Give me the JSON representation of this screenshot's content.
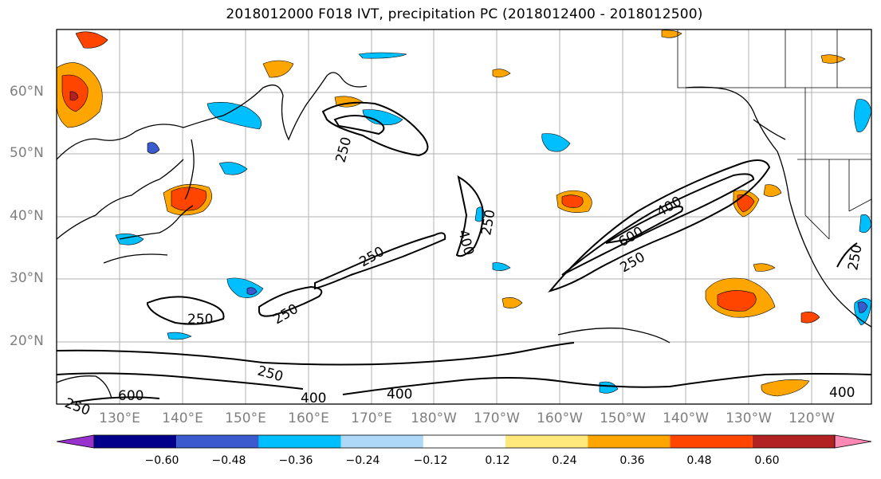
{
  "title": "2018012000 F018 IVT, precipitation PC (2018012400 - 2018012500)",
  "map": {
    "lat_labels": [
      "60°N",
      "50°N",
      "40°N",
      "30°N",
      "20°N"
    ],
    "lon_labels": [
      "130°E",
      "140°E",
      "150°E",
      "160°E",
      "170°E",
      "180°W",
      "170°W",
      "160°W",
      "150°W",
      "140°W",
      "130°W",
      "120°W"
    ],
    "contour_labels": [
      "250",
      "250",
      "250",
      "250",
      "400",
      "250",
      "600",
      "400",
      "250",
      "250",
      "400",
      "400",
      "250",
      "600",
      "400",
      "250"
    ],
    "gridlines": true,
    "label_color": "#7f7f7f"
  },
  "colorbar": {
    "ticks": [
      "−0.60",
      "−0.48",
      "−0.36",
      "−0.24",
      "−0.12",
      "0.12",
      "0.24",
      "0.36",
      "0.48",
      "0.60"
    ],
    "colors": [
      "#9932cc",
      "#00008b",
      "#3a5acd",
      "#00bfff",
      "#add8f8",
      "#ffffff",
      "#ffe87c",
      "#ffa500",
      "#ff4500",
      "#b22222",
      "#ff88b4"
    ],
    "extend": "both"
  }
}
